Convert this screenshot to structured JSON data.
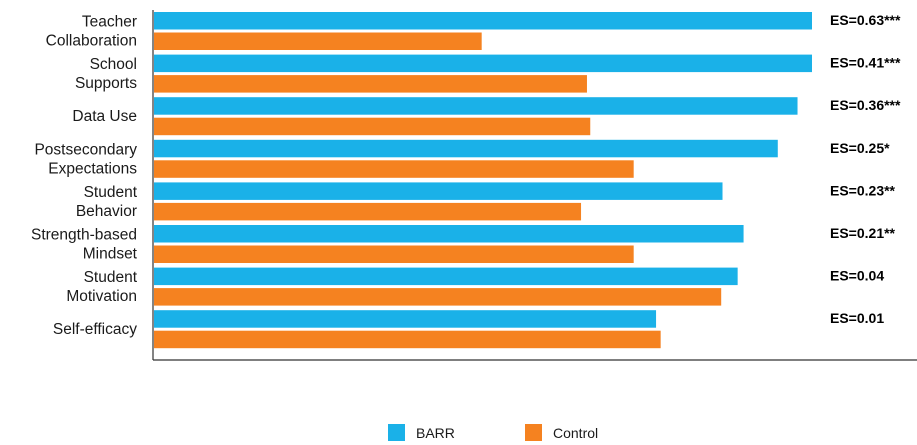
{
  "chart_data": {
    "type": "bar",
    "orientation": "horizontal",
    "categories": [
      [
        "Teacher",
        "Collaboration"
      ],
      [
        "School",
        "Supports"
      ],
      [
        "Data Use"
      ],
      [
        "Postsecondary",
        "Expectations"
      ],
      [
        "Student",
        "Behavior"
      ],
      [
        "Strength-based",
        "Mindset"
      ],
      [
        "Student",
        "Motivation"
      ],
      [
        "Self-efficacy"
      ]
    ],
    "series": [
      {
        "name": "BARR",
        "color": "#1ab1e8",
        "values": [
          100,
          100,
          97.8,
          94.8,
          86.4,
          89.6,
          88.7,
          76.3
        ]
      },
      {
        "name": "Control",
        "color": "#f58220",
        "values": [
          49.8,
          65.8,
          66.3,
          72.9,
          64.9,
          72.9,
          86.2,
          77.0
        ]
      }
    ],
    "annotations": [
      "ES=0.63***",
      "ES=0.41***",
      "ES=0.36***",
      "ES=0.25*",
      "ES=0.23**",
      "ES=0.21**",
      "ES=0.04",
      "ES=0.01"
    ],
    "xlim": [
      0,
      100
    ],
    "grid": false,
    "legend_position": "bottom-center"
  }
}
